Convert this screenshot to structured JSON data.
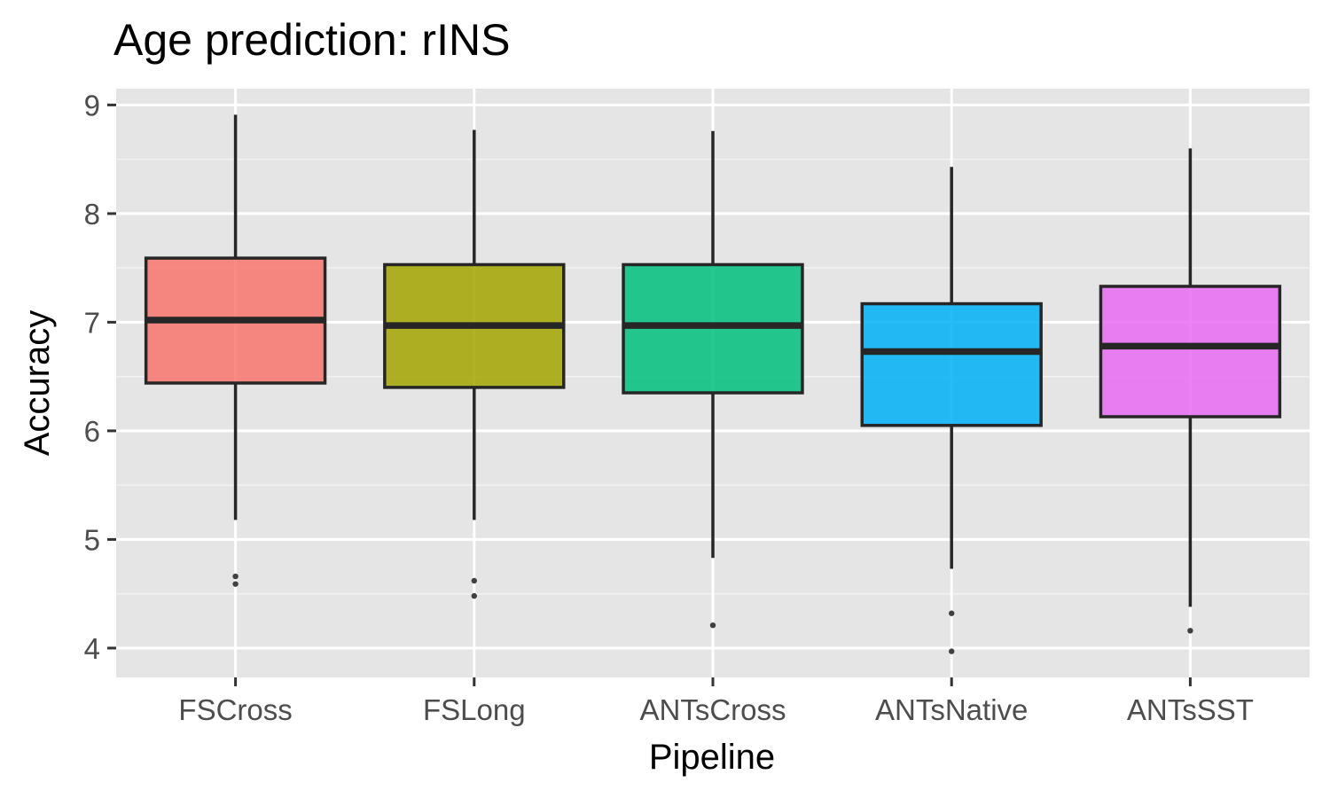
{
  "chart_data": {
    "type": "box",
    "title": "Age prediction: rINS",
    "xlabel": "Pipeline",
    "ylabel": "Accuracy",
    "ylim": [
      3.73,
      9.15
    ],
    "yticks": [
      4,
      5,
      6,
      7,
      8,
      9
    ],
    "grid": true,
    "legend": "none",
    "categories": [
      "FSCross",
      "FSLong",
      "ANTsCross",
      "ANTsNative",
      "ANTsSST"
    ],
    "series": [
      {
        "category": "FSCross",
        "color": "#F8766D",
        "whisker_low": 5.18,
        "q1": 6.44,
        "median": 7.02,
        "q3": 7.59,
        "whisker_high": 8.91,
        "outliers": [
          4.66,
          4.59
        ]
      },
      {
        "category": "FSLong",
        "color": "#A3A500",
        "whisker_low": 5.18,
        "q1": 6.4,
        "median": 6.97,
        "q3": 7.53,
        "whisker_high": 8.77,
        "outliers": [
          4.62,
          4.48
        ]
      },
      {
        "category": "ANTsCross",
        "color": "#00BF7D",
        "whisker_low": 4.83,
        "q1": 6.35,
        "median": 6.97,
        "q3": 7.53,
        "whisker_high": 8.76,
        "outliers": [
          4.21
        ]
      },
      {
        "category": "ANTsNative",
        "color": "#00B0F6",
        "whisker_low": 4.73,
        "q1": 6.05,
        "median": 6.73,
        "q3": 7.17,
        "whisker_high": 8.43,
        "outliers": [
          4.32,
          3.97
        ]
      },
      {
        "category": "ANTsSST",
        "color": "#E76BF3",
        "whisker_low": 4.38,
        "q1": 6.13,
        "median": 6.78,
        "q3": 7.33,
        "whisker_high": 8.6,
        "outliers": [
          4.16
        ]
      }
    ]
  }
}
